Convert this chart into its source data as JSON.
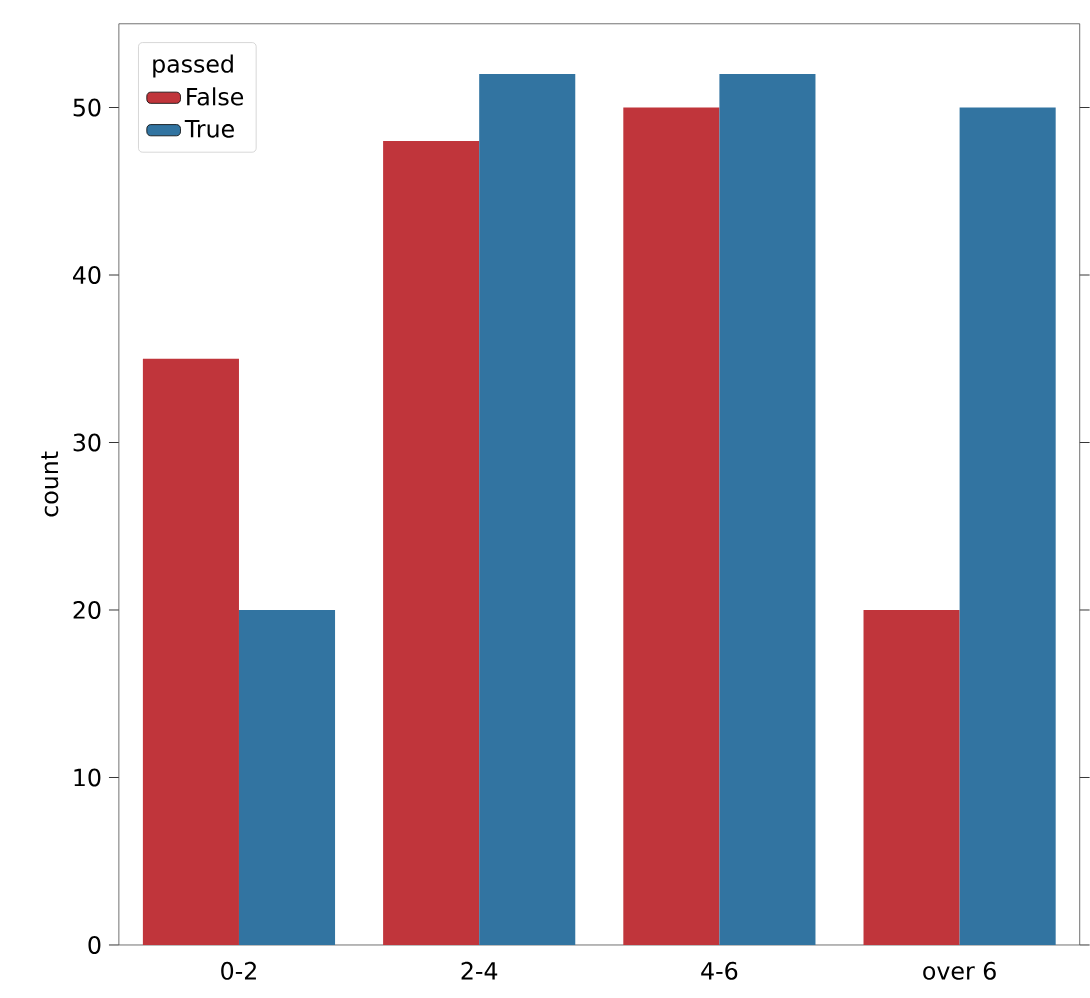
{
  "chart_data": {
    "type": "bar",
    "ylabel": "count",
    "legend_title": "passed",
    "categories": [
      "0-2",
      "2-4",
      "4-6",
      "over 6"
    ],
    "series": [
      {
        "name": "False",
        "color": "#c0353b",
        "values": [
          35,
          48,
          50,
          20
        ]
      },
      {
        "name": "True",
        "color": "#3274a1",
        "values": [
          20,
          52,
          52,
          50
        ]
      }
    ],
    "ylim": [
      0,
      55
    ],
    "yticks": [
      0,
      10,
      20,
      30,
      40,
      50
    ],
    "legend": "top left"
  }
}
